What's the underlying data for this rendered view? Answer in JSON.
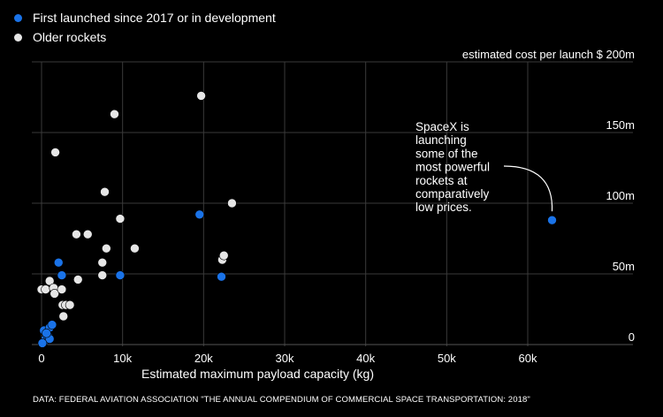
{
  "chart_data": {
    "type": "scatter",
    "title": "",
    "xlabel": "Estimated maximum payload capacity (kg)",
    "ylabel": "estimated cost per launch $",
    "xlim": [
      -500,
      70000
    ],
    "ylim": [
      0,
      200
    ],
    "x_ticks": [
      0,
      10000,
      20000,
      30000,
      40000,
      50000,
      60000
    ],
    "x_tick_labels": [
      "0",
      "10k",
      "20k",
      "30k",
      "40k",
      "50k",
      "60k"
    ],
    "y_ticks": [
      0,
      50,
      100,
      150,
      200
    ],
    "y_tick_labels": [
      "0",
      "50m",
      "100m",
      "150m",
      "200m"
    ],
    "y_top_label": "estimated cost per launch $ 200m",
    "grid": true,
    "legend_position": "top-left",
    "series": [
      {
        "name": "First launched since 2017 or in development",
        "color": "#1a73e8",
        "points": [
          [
            300,
            2
          ],
          [
            500,
            4
          ],
          [
            800,
            6
          ],
          [
            300,
            10
          ],
          [
            1000,
            12
          ],
          [
            1300,
            14
          ],
          [
            1000,
            4
          ],
          [
            2100,
            58
          ],
          [
            2500,
            49
          ],
          [
            9700,
            49
          ],
          [
            19500,
            92
          ],
          [
            22200,
            48
          ],
          [
            63000,
            88
          ],
          [
            100,
            1
          ],
          [
            600,
            8
          ]
        ]
      },
      {
        "name": "Older rockets",
        "color": "#e6e6e6",
        "points": [
          [
            0,
            39
          ],
          [
            500,
            39
          ],
          [
            1000,
            45
          ],
          [
            1500,
            40
          ],
          [
            1600,
            36
          ],
          [
            1700,
            136
          ],
          [
            2500,
            39
          ],
          [
            2600,
            28
          ],
          [
            2700,
            20
          ],
          [
            3000,
            28
          ],
          [
            3500,
            28
          ],
          [
            4500,
            46
          ],
          [
            4300,
            78
          ],
          [
            5700,
            78
          ],
          [
            7500,
            58
          ],
          [
            7500,
            49
          ],
          [
            7800,
            108
          ],
          [
            8000,
            68
          ],
          [
            9000,
            163
          ],
          [
            9700,
            89
          ],
          [
            11500,
            68
          ],
          [
            19700,
            176
          ],
          [
            22300,
            60
          ],
          [
            22500,
            63
          ],
          [
            23500,
            100
          ]
        ]
      }
    ],
    "annotation": {
      "text_lines": [
        "SpaceX is",
        "launching",
        "some of the",
        "most powerful",
        "rockets at",
        "comparatively",
        "low prices."
      ],
      "target": [
        63000,
        88
      ]
    },
    "source": "DATA: FEDERAL AVIATION ASSOCIATION \"THE ANNUAL COMPENDIUM OF COMMERCIAL SPACE TRANSPORTATION: 2018\""
  }
}
